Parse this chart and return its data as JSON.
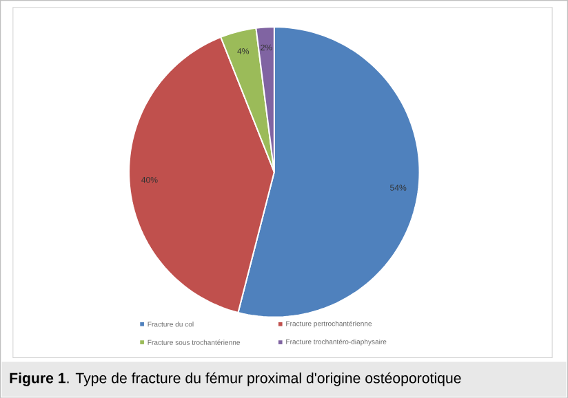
{
  "chart_data": {
    "type": "pie",
    "categories": [
      "Fracture du col",
      "Fracture pertrochantérienne",
      "Fracture sous trochantérienne",
      "Fracture trochantéro-diaphysaire"
    ],
    "values": [
      54,
      40,
      4,
      2
    ],
    "colors": [
      "#4f81bd",
      "#c0504d",
      "#9bbb59",
      "#8064a2"
    ],
    "value_labels": [
      "54%",
      "40%",
      "4%",
      "2%"
    ],
    "legend": "bottom",
    "annotations": [
      "**Figure 1**. Type de fracture du fémur proximal d'origine ostéoporotique"
    ]
  }
}
